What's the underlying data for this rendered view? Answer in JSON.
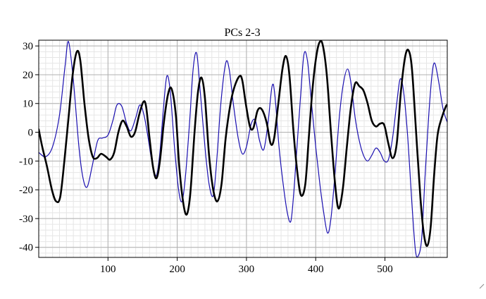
{
  "chart_data": {
    "type": "line",
    "title": "PCs 2-3",
    "xlabel": "",
    "ylabel": "",
    "xlim": [
      0,
      590
    ],
    "ylim": [
      -43.5,
      32
    ],
    "grid": true,
    "minor_grid": true,
    "x_major_ticks": [
      100,
      200,
      300,
      400,
      500
    ],
    "x_minor_step": 10,
    "y_major_ticks": [
      -40,
      -30,
      -20,
      -10,
      0,
      10,
      20,
      30
    ],
    "y_minor_step": 2,
    "legend": "none",
    "series": [
      {
        "color": "#1a0fb0",
        "stroke_width": 1.2,
        "points": [
          [
            0,
            -7
          ],
          [
            10,
            -8.5
          ],
          [
            20,
            -5
          ],
          [
            30,
            6
          ],
          [
            38,
            23
          ],
          [
            43,
            31.5
          ],
          [
            50,
            18
          ],
          [
            58,
            -5
          ],
          [
            64,
            -16
          ],
          [
            70,
            -19
          ],
          [
            77,
            -12
          ],
          [
            85,
            -3
          ],
          [
            92,
            -2
          ],
          [
            100,
            -1
          ],
          [
            107,
            4
          ],
          [
            113,
            9.5
          ],
          [
            120,
            9
          ],
          [
            127,
            3
          ],
          [
            133,
            0.5
          ],
          [
            140,
            5
          ],
          [
            146,
            9.5
          ],
          [
            152,
            6
          ],
          [
            158,
            -2
          ],
          [
            164,
            -11
          ],
          [
            170,
            -15
          ],
          [
            175,
            -7
          ],
          [
            180,
            8
          ],
          [
            185,
            19.5
          ],
          [
            190,
            14
          ],
          [
            196,
            -5
          ],
          [
            202,
            -20
          ],
          [
            207,
            -24
          ],
          [
            212,
            -15
          ],
          [
            218,
            4
          ],
          [
            223,
            22
          ],
          [
            228,
            27.5
          ],
          [
            233,
            15
          ],
          [
            240,
            -5
          ],
          [
            246,
            -18
          ],
          [
            252,
            -22
          ],
          [
            257,
            -10
          ],
          [
            263,
            10
          ],
          [
            270,
            24
          ],
          [
            275,
            22
          ],
          [
            281,
            10
          ],
          [
            288,
            -2
          ],
          [
            294,
            -7.5
          ],
          [
            300,
            -5
          ],
          [
            307,
            3
          ],
          [
            313,
            4
          ],
          [
            319,
            -3
          ],
          [
            325,
            -6
          ],
          [
            331,
            3
          ],
          [
            337,
            16
          ],
          [
            341,
            13
          ],
          [
            347,
            -5
          ],
          [
            353,
            -18
          ],
          [
            359,
            -28
          ],
          [
            364,
            -31
          ],
          [
            368,
            -22
          ],
          [
            373,
            -5
          ],
          [
            378,
            12
          ],
          [
            383,
            27
          ],
          [
            388,
            25
          ],
          [
            394,
            10
          ],
          [
            400,
            -5
          ],
          [
            406,
            -18
          ],
          [
            411,
            -27
          ],
          [
            417,
            -35
          ],
          [
            422,
            -30
          ],
          [
            428,
            -14
          ],
          [
            434,
            5
          ],
          [
            440,
            17
          ],
          [
            446,
            22
          ],
          [
            451,
            17
          ],
          [
            457,
            5
          ],
          [
            463,
            -3
          ],
          [
            469,
            -8
          ],
          [
            475,
            -10
          ],
          [
            481,
            -8
          ],
          [
            487,
            -5.5
          ],
          [
            493,
            -7
          ],
          [
            499,
            -10
          ],
          [
            505,
            -9.5
          ],
          [
            511,
            -2
          ],
          [
            517,
            10
          ],
          [
            522,
            18.5
          ],
          [
            527,
            14
          ],
          [
            533,
            -2
          ],
          [
            539,
            -25
          ],
          [
            544,
            -41
          ],
          [
            548,
            -43
          ],
          [
            553,
            -37
          ],
          [
            558,
            -15
          ],
          [
            563,
            5
          ],
          [
            568,
            20
          ],
          [
            572,
            24
          ],
          [
            578,
            17
          ],
          [
            584,
            8
          ],
          [
            590,
            3.5
          ]
        ]
      },
      {
        "color": "#000000",
        "stroke_width": 2.6,
        "points": [
          [
            0,
            1
          ],
          [
            5,
            -5
          ],
          [
            12,
            -12
          ],
          [
            19,
            -20
          ],
          [
            25,
            -24
          ],
          [
            31,
            -22.5
          ],
          [
            37,
            -10
          ],
          [
            43,
            5
          ],
          [
            49,
            20
          ],
          [
            55,
            28
          ],
          [
            60,
            25
          ],
          [
            66,
            10
          ],
          [
            72,
            -2
          ],
          [
            78,
            -8.5
          ],
          [
            84,
            -9
          ],
          [
            90,
            -7.5
          ],
          [
            97,
            -8.5
          ],
          [
            103,
            -9.5
          ],
          [
            109,
            -7
          ],
          [
            115,
            0
          ],
          [
            121,
            4
          ],
          [
            127,
            2
          ],
          [
            133,
            -1.5
          ],
          [
            139,
            0
          ],
          [
            145,
            6
          ],
          [
            151,
            10.5
          ],
          [
            155,
            9
          ],
          [
            160,
            -2
          ],
          [
            165,
            -12
          ],
          [
            170,
            -16
          ],
          [
            175,
            -10
          ],
          [
            181,
            4
          ],
          [
            187,
            13.5
          ],
          [
            192,
            15
          ],
          [
            198,
            6
          ],
          [
            203,
            -12
          ],
          [
            209,
            -25
          ],
          [
            214,
            -28.5
          ],
          [
            219,
            -21
          ],
          [
            225,
            0
          ],
          [
            230,
            14
          ],
          [
            235,
            19
          ],
          [
            240,
            12
          ],
          [
            246,
            -8
          ],
          [
            252,
            -20
          ],
          [
            258,
            -24
          ],
          [
            264,
            -18
          ],
          [
            270,
            -2
          ],
          [
            277,
            10
          ],
          [
            283,
            16
          ],
          [
            290,
            19.5
          ],
          [
            294,
            18
          ],
          [
            299,
            10
          ],
          [
            305,
            2
          ],
          [
            310,
            1.5
          ],
          [
            316,
            7.5
          ],
          [
            322,
            8
          ],
          [
            329,
            3.5
          ],
          [
            335,
            -4
          ],
          [
            340,
            -2
          ],
          [
            346,
            10
          ],
          [
            352,
            22
          ],
          [
            357,
            26.5
          ],
          [
            362,
            20
          ],
          [
            368,
            0
          ],
          [
            374,
            -15
          ],
          [
            379,
            -22
          ],
          [
            385,
            -18
          ],
          [
            390,
            -2
          ],
          [
            395,
            14
          ],
          [
            400,
            25
          ],
          [
            405,
            31
          ],
          [
            410,
            30.5
          ],
          [
            416,
            20
          ],
          [
            422,
            0
          ],
          [
            428,
            -18
          ],
          [
            433,
            -26.5
          ],
          [
            439,
            -20
          ],
          [
            445,
            -5
          ],
          [
            451,
            9
          ],
          [
            457,
            17
          ],
          [
            463,
            16
          ],
          [
            469,
            14.5
          ],
          [
            475,
            10
          ],
          [
            481,
            4
          ],
          [
            487,
            2
          ],
          [
            493,
            3
          ],
          [
            499,
            2.5
          ],
          [
            505,
            -4
          ],
          [
            511,
            -9
          ],
          [
            517,
            -4
          ],
          [
            523,
            14
          ],
          [
            529,
            26
          ],
          [
            534,
            28.5
          ],
          [
            539,
            22
          ],
          [
            545,
            0
          ],
          [
            551,
            -22
          ],
          [
            556,
            -35
          ],
          [
            561,
            -39.5
          ],
          [
            566,
            -33
          ],
          [
            571,
            -15
          ],
          [
            576,
            -1
          ],
          [
            582,
            5
          ],
          [
            588,
            9
          ],
          [
            590,
            9.5
          ]
        ]
      }
    ]
  }
}
